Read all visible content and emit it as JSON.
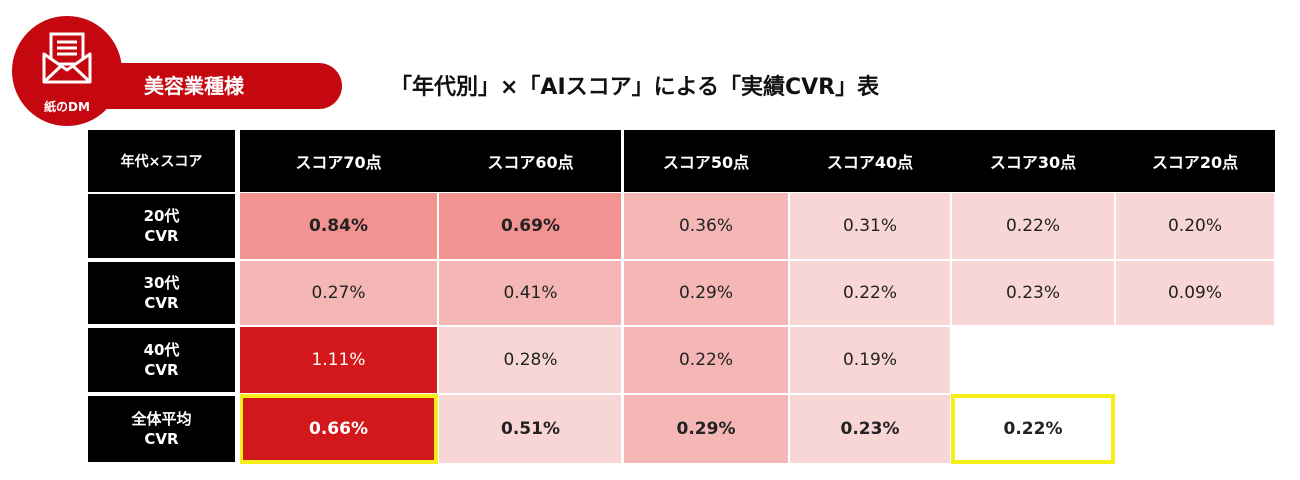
{
  "badge": {
    "label": "紙のDM",
    "icon": "mail-envelope-icon"
  },
  "category": "美容業種様",
  "title": "「年代別」×「AIスコア」による「実績CVR」表",
  "chart_data": {
    "type": "table",
    "corner": "年代×スコア",
    "columns": [
      "スコア70点",
      "スコア60点",
      "スコア50点",
      "スコア40点",
      "スコア30点",
      "スコア20点"
    ],
    "rows": [
      {
        "label_line1": "20代",
        "label_line2": "CVR",
        "values": [
          "0.84%",
          "0.69%",
          "0.36%",
          "0.31%",
          "0.22%",
          "0.20%"
        ]
      },
      {
        "label_line1": "30代",
        "label_line2": "CVR",
        "values": [
          "0.27%",
          "0.41%",
          "0.29%",
          "0.22%",
          "0.23%",
          "0.09%"
        ]
      },
      {
        "label_line1": "40代",
        "label_line2": "CVR",
        "values": [
          "1.11%",
          "0.28%",
          "0.22%",
          "0.19%",
          "",
          ""
        ]
      },
      {
        "label_line1": "全体平均",
        "label_line2": "CVR",
        "values": [
          "0.66%",
          "0.51%",
          "0.29%",
          "0.23%",
          "0.22%",
          ""
        ]
      }
    ],
    "cell_colors": [
      [
        "#f29392",
        "#f29392",
        "#f5b6b6",
        "#f9d6d6",
        "#f9d6d6",
        "#f9d6d6"
      ],
      [
        "#f5b6b6",
        "#f5b6b6",
        "#f5b6b6",
        "#f9d6d6",
        "#f9d6d6",
        "#f9d6d6"
      ],
      [
        "#d2181b",
        "#f9d6d6",
        "#f5b6b6",
        "#f9d6d6",
        "#ffffff",
        "#ffffff"
      ],
      [
        "#d2181b",
        "#f9d6d6",
        "#f5b6b6",
        "#f9d6d6",
        "#ffffff",
        "#ffffff"
      ]
    ],
    "highlighted_cells": [
      [
        3,
        0
      ],
      [
        3,
        4
      ]
    ],
    "highlight_color": "#f5ee19"
  }
}
